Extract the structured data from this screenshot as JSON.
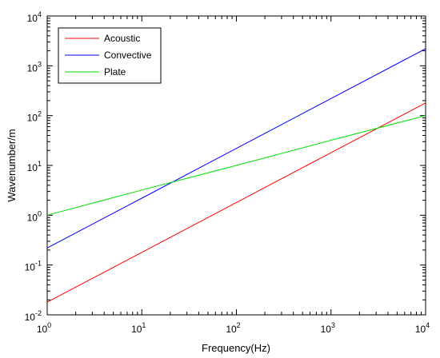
{
  "chart_data": {
    "type": "line",
    "xscale": "log",
    "yscale": "log",
    "xlabel": "Frequency(Hz)",
    "ylabel": "Wavenumber/m",
    "xlim": [
      1,
      10000
    ],
    "ylim": [
      0.01,
      10000
    ],
    "x_ticks": [
      {
        "value": 1,
        "base": "10",
        "exp": "0"
      },
      {
        "value": 10,
        "base": "10",
        "exp": "1"
      },
      {
        "value": 100,
        "base": "10",
        "exp": "2"
      },
      {
        "value": 1000,
        "base": "10",
        "exp": "3"
      },
      {
        "value": 10000,
        "base": "10",
        "exp": "4"
      }
    ],
    "y_ticks": [
      {
        "value": 0.01,
        "base": "10",
        "exp": "-2"
      },
      {
        "value": 0.1,
        "base": "10",
        "exp": "-1"
      },
      {
        "value": 1,
        "base": "10",
        "exp": "0"
      },
      {
        "value": 10,
        "base": "10",
        "exp": "1"
      },
      {
        "value": 100,
        "base": "10",
        "exp": "2"
      },
      {
        "value": 1000,
        "base": "10",
        "exp": "3"
      },
      {
        "value": 10000,
        "base": "10",
        "exp": "4"
      }
    ],
    "grid": false,
    "legend_position": "top-left",
    "series": [
      {
        "name": "Acoustic",
        "color": "#ff0000",
        "x": [
          1,
          10,
          100,
          1000,
          10000
        ],
        "y": [
          0.018,
          0.18,
          1.8,
          18,
          180
        ]
      },
      {
        "name": "Convective",
        "color": "#0000ff",
        "x": [
          1,
          10,
          100,
          1000,
          10000
        ],
        "y": [
          0.22,
          2.2,
          22,
          220,
          2200
        ]
      },
      {
        "name": "Plate",
        "color": "#00dd00",
        "x": [
          1,
          10,
          100,
          1000,
          10000
        ],
        "y": [
          1.0,
          3.2,
          10,
          32,
          100
        ]
      }
    ]
  }
}
